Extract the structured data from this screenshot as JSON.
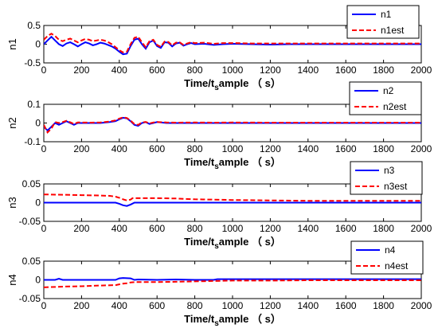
{
  "colors": {
    "actual": "#0000ff",
    "estimate": "#ff0000",
    "axis": "#000000",
    "background": "#ffffff"
  },
  "chart_data": [
    {
      "type": "line",
      "ylabel": "n1",
      "xlabel": "Time/t",
      "xlabel_sub": "s",
      "xlabel_tail": "ample （ s）",
      "xlim": [
        0,
        2000
      ],
      "ylim": [
        -0.5,
        0.5
      ],
      "xticks": [
        "0",
        "200",
        "400",
        "600",
        "800",
        "1000",
        "1200",
        "1400",
        "1600",
        "1800",
        "2000"
      ],
      "yticks": [
        "0.5",
        "0",
        "-0.5"
      ],
      "legend_position": "top-right",
      "series": [
        {
          "name": "n1",
          "style": "solid",
          "color": "#0000ff",
          "x": [
            0,
            20,
            40,
            60,
            80,
            100,
            120,
            140,
            160,
            180,
            200,
            220,
            240,
            260,
            280,
            300,
            320,
            340,
            360,
            380,
            400,
            420,
            440,
            460,
            480,
            500,
            520,
            540,
            560,
            580,
            600,
            620,
            640,
            660,
            680,
            700,
            720,
            740,
            760,
            780,
            800,
            850,
            900,
            950,
            1000,
            1100,
            1200,
            1300,
            1400,
            1500,
            1600,
            1700,
            1800,
            1900,
            2000
          ],
          "y": [
            0.0,
            0.1,
            0.2,
            0.1,
            0.0,
            -0.05,
            0.02,
            0.05,
            0.0,
            -0.06,
            0.0,
            0.05,
            0.02,
            -0.03,
            0.0,
            0.04,
            0.02,
            -0.02,
            -0.06,
            -0.12,
            -0.2,
            -0.27,
            -0.25,
            -0.05,
            0.12,
            0.15,
            0.0,
            -0.12,
            0.05,
            0.1,
            -0.05,
            -0.1,
            0.05,
            0.04,
            -0.06,
            0.02,
            0.04,
            -0.04,
            0.0,
            0.03,
            0.0,
            0.01,
            -0.02,
            0.0,
            0.01,
            0.0,
            -0.01,
            0.0,
            0.0,
            0.0,
            0.0,
            0.0,
            0.0,
            0.0,
            0.0
          ]
        },
        {
          "name": "n1est",
          "style": "dashed",
          "color": "#ff0000",
          "x": [
            0,
            20,
            40,
            60,
            80,
            100,
            120,
            140,
            160,
            180,
            200,
            220,
            240,
            260,
            280,
            300,
            320,
            340,
            360,
            380,
            400,
            420,
            440,
            460,
            480,
            500,
            520,
            540,
            560,
            580,
            600,
            620,
            640,
            660,
            680,
            700,
            720,
            740,
            760,
            780,
            800,
            850,
            900,
            950,
            1000,
            1100,
            1200,
            1300,
            1400,
            1500,
            1600,
            1700,
            1800,
            1900,
            2000
          ],
          "y": [
            0.12,
            0.22,
            0.28,
            0.22,
            0.12,
            0.08,
            0.12,
            0.15,
            0.1,
            0.05,
            0.1,
            0.14,
            0.12,
            0.08,
            0.1,
            0.12,
            0.1,
            0.06,
            0.0,
            -0.08,
            -0.16,
            -0.22,
            -0.2,
            0.0,
            0.17,
            0.2,
            0.05,
            -0.08,
            0.08,
            0.12,
            -0.02,
            -0.07,
            0.07,
            0.06,
            -0.03,
            0.04,
            0.05,
            -0.02,
            0.02,
            0.05,
            0.03,
            0.04,
            0.01,
            0.03,
            0.03,
            0.02,
            0.02,
            0.02,
            0.02,
            0.02,
            0.02,
            0.02,
            0.02,
            0.02,
            0.02
          ]
        }
      ]
    },
    {
      "type": "line",
      "ylabel": "n2",
      "xlabel": "Time/t",
      "xlabel_sub": "s",
      "xlabel_tail": "ample （ s）",
      "xlim": [
        0,
        2000
      ],
      "ylim": [
        -0.1,
        0.1
      ],
      "xticks": [
        "0",
        "200",
        "400",
        "600",
        "800",
        "1000",
        "1200",
        "1400",
        "1600",
        "1800",
        "2000"
      ],
      "yticks": [
        "0.1",
        "0",
        "-0.1"
      ],
      "legend_position": "top-right",
      "series": [
        {
          "name": "n2",
          "style": "solid",
          "color": "#0000ff",
          "x": [
            0,
            20,
            40,
            60,
            80,
            100,
            120,
            140,
            160,
            180,
            200,
            250,
            300,
            350,
            380,
            400,
            420,
            440,
            460,
            480,
            500,
            520,
            540,
            560,
            580,
            600,
            650,
            700,
            800,
            900,
            1000,
            1200,
            1400,
            1600,
            1800,
            2000
          ],
          "y": [
            -0.02,
            -0.04,
            -0.02,
            0.0,
            -0.01,
            0.0,
            0.01,
            0.0,
            -0.01,
            0.0,
            0.0,
            0.0,
            0.0,
            0.005,
            0.01,
            0.02,
            0.028,
            0.025,
            0.01,
            -0.01,
            -0.015,
            0.0,
            0.005,
            -0.005,
            0.0,
            0.005,
            0.0,
            0.0,
            0.0,
            0.0,
            0.0,
            0.0,
            0.0,
            0.0,
            0.0,
            0.0
          ]
        },
        {
          "name": "n2est",
          "style": "dashed",
          "color": "#ff0000",
          "x": [
            0,
            20,
            40,
            60,
            80,
            100,
            120,
            140,
            160,
            180,
            200,
            250,
            300,
            350,
            380,
            400,
            420,
            440,
            460,
            480,
            500,
            520,
            540,
            560,
            580,
            600,
            650,
            700,
            800,
            900,
            1000,
            1200,
            1400,
            1600,
            1800,
            2000
          ],
          "y": [
            -0.01,
            -0.05,
            -0.03,
            0.005,
            0.0,
            0.005,
            0.012,
            0.004,
            -0.005,
            0.003,
            0.003,
            0.002,
            0.003,
            0.008,
            0.014,
            0.024,
            0.03,
            0.027,
            0.013,
            -0.006,
            -0.01,
            0.003,
            0.006,
            -0.002,
            0.003,
            0.005,
            0.003,
            0.002,
            0.003,
            0.002,
            0.003,
            0.002,
            0.002,
            0.002,
            0.002,
            0.002
          ]
        }
      ]
    },
    {
      "type": "line",
      "ylabel": "n3",
      "xlabel": "Time/t",
      "xlabel_sub": "s",
      "xlabel_tail": "ample （ s）",
      "xlim": [
        0,
        2000
      ],
      "ylim": [
        -0.05,
        0.05
      ],
      "xticks": [
        "0",
        "200",
        "400",
        "600",
        "800",
        "1000",
        "1200",
        "1400",
        "1600",
        "1800",
        "2000"
      ],
      "yticks": [
        "0.05",
        "0",
        "-0.05"
      ],
      "legend_position": "top-right",
      "series": [
        {
          "name": "n3",
          "style": "solid",
          "color": "#0000ff",
          "x": [
            0,
            100,
            200,
            300,
            380,
            400,
            420,
            440,
            460,
            480,
            500,
            600,
            700,
            800,
            900,
            1000,
            1200,
            1400,
            1600,
            1800,
            2000
          ],
          "y": [
            0.0,
            0.0,
            0.0,
            0.0,
            0.0,
            -0.003,
            -0.007,
            -0.009,
            -0.005,
            0.0,
            0.0,
            0.0,
            0.0,
            0.0,
            0.0,
            0.0,
            0.0,
            0.0,
            0.0,
            0.0,
            0.0
          ]
        },
        {
          "name": "n3est",
          "style": "dashed",
          "color": "#ff0000",
          "x": [
            0,
            100,
            200,
            300,
            350,
            380,
            400,
            420,
            440,
            460,
            470,
            480,
            600,
            700,
            800,
            900,
            1000,
            1200,
            1400,
            1600,
            1800,
            2000
          ],
          "y": [
            0.022,
            0.021,
            0.02,
            0.019,
            0.018,
            0.016,
            0.013,
            0.009,
            0.006,
            0.008,
            0.012,
            0.012,
            0.012,
            0.011,
            0.009,
            0.008,
            0.007,
            0.006,
            0.005,
            0.005,
            0.005,
            0.005
          ]
        }
      ]
    },
    {
      "type": "line",
      "ylabel": "n4",
      "xlabel": "Time/t",
      "xlabel_sub": "s",
      "xlabel_tail": "ample （ s）",
      "xlim": [
        0,
        2000
      ],
      "ylim": [
        -0.05,
        0.05
      ],
      "xticks": [
        "0",
        "200",
        "400",
        "600",
        "800",
        "1000",
        "1200",
        "1400",
        "1600",
        "1800",
        "2000"
      ],
      "yticks": [
        "0.05",
        "0",
        "-0.05"
      ],
      "legend_position": "top-right",
      "series": [
        {
          "name": "n4",
          "style": "solid",
          "color": "#0000ff",
          "x": [
            0,
            60,
            80,
            100,
            200,
            300,
            380,
            400,
            420,
            460,
            480,
            500,
            600,
            700,
            800,
            900,
            920,
            1000,
            1200,
            1400,
            1600,
            1800,
            2000
          ],
          "y": [
            0.0,
            0.0,
            0.003,
            0.0,
            0.0,
            0.0,
            0.0,
            0.004,
            0.005,
            0.004,
            0.0,
            0.001,
            0.0,
            0.001,
            0.0,
            0.0,
            0.002,
            0.002,
            0.002,
            0.002,
            0.002,
            0.002,
            0.002
          ]
        },
        {
          "name": "n4est",
          "style": "dashed",
          "color": "#ff0000",
          "x": [
            0,
            100,
            200,
            300,
            380,
            400,
            420,
            440,
            460,
            480,
            600,
            700,
            800,
            900,
            1000,
            1200,
            1400,
            1600,
            1800,
            2000
          ],
          "y": [
            -0.02,
            -0.018,
            -0.017,
            -0.015,
            -0.014,
            -0.012,
            -0.01,
            -0.009,
            -0.007,
            -0.006,
            -0.006,
            -0.005,
            -0.004,
            -0.003,
            -0.002,
            -0.002,
            -0.001,
            -0.001,
            -0.001,
            -0.001
          ]
        }
      ]
    }
  ]
}
